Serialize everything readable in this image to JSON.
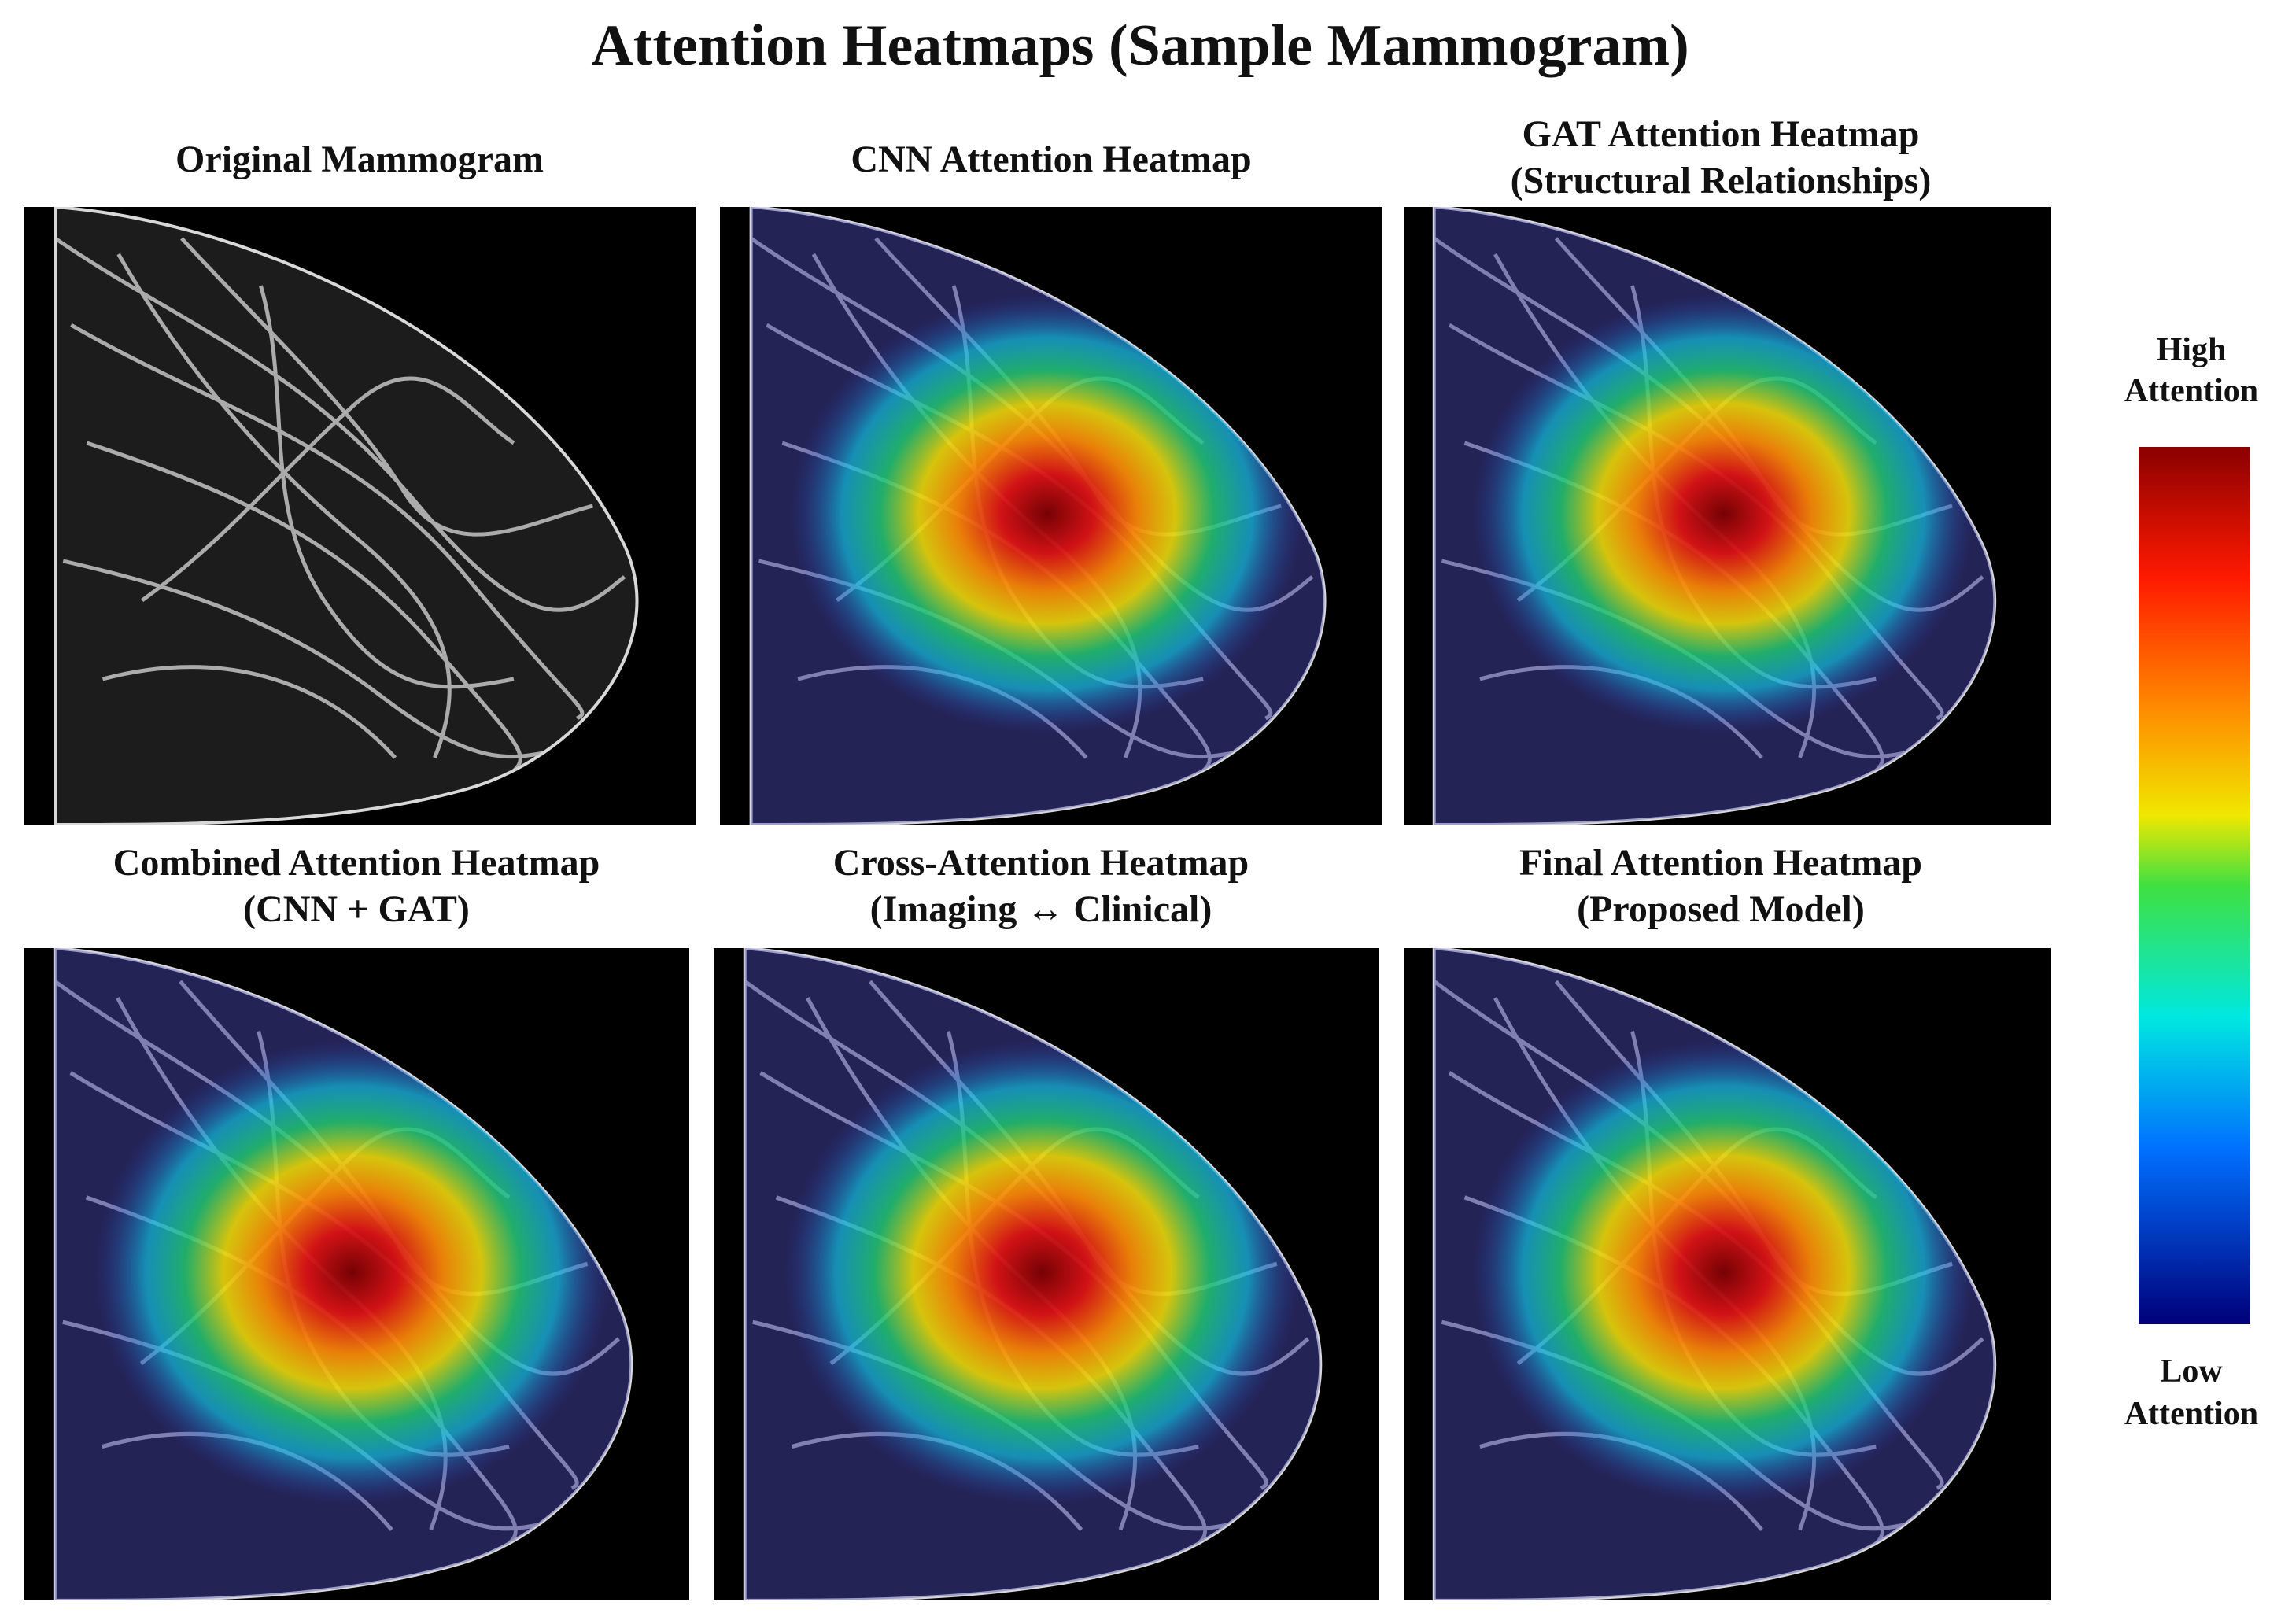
{
  "title": "Attention Heatmaps (Sample Mammogram)",
  "panels": [
    {
      "title": [
        "Original Mammogram"
      ]
    },
    {
      "title": [
        "CNN Attention Heatmap"
      ]
    },
    {
      "title": [
        "GAT Attention Heatmap",
        "(Structural Relationships)"
      ]
    },
    {
      "title": [
        "Combined Attention Heatmap",
        "(CNN + GAT)"
      ]
    },
    {
      "title": [
        "Cross-Attention Heatmap",
        "(Imaging ↔ Clinical)"
      ]
    },
    {
      "title": [
        "Final Attention Heatmap",
        "(Proposed Model)"
      ]
    }
  ],
  "colorbar": {
    "high": [
      "High",
      "Attention"
    ],
    "low": [
      "Low",
      "Attention"
    ]
  }
}
